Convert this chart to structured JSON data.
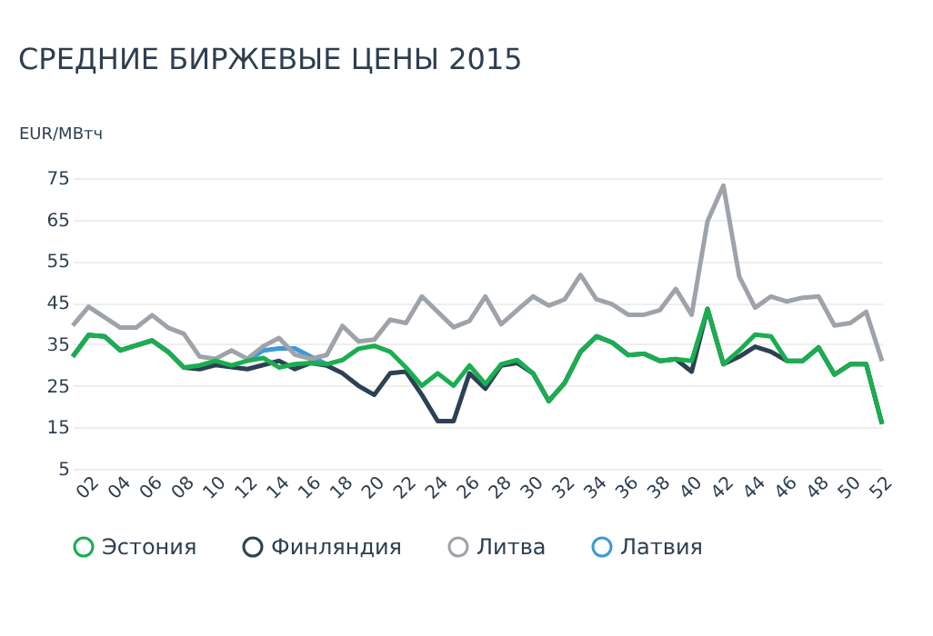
{
  "chart_data": {
    "type": "line",
    "title": "СРЕДНИЕ БИРЖЕВЫЕ ЦЕНЫ 2015",
    "ylabel": "EUR/МВтч",
    "x": [
      1,
      2,
      3,
      4,
      5,
      6,
      7,
      8,
      9,
      10,
      11,
      12,
      13,
      14,
      15,
      16,
      17,
      18,
      19,
      20,
      21,
      22,
      23,
      24,
      25,
      26,
      27,
      28,
      29,
      30,
      31,
      32,
      33,
      34,
      35,
      36,
      37,
      38,
      39,
      40,
      41,
      42,
      43,
      44,
      45,
      46,
      47,
      48,
      49,
      50,
      51,
      52
    ],
    "xlim": [
      1,
      52
    ],
    "xticks": [
      {
        "value": 2,
        "label": "02"
      },
      {
        "value": 4,
        "label": "04"
      },
      {
        "value": 6,
        "label": "06"
      },
      {
        "value": 8,
        "label": "08"
      },
      10,
      12,
      14,
      16,
      18,
      20,
      22,
      24,
      26,
      28,
      30,
      32,
      34,
      36,
      38,
      40,
      42,
      44,
      46,
      48,
      50,
      52
    ],
    "ylim": [
      5,
      75
    ],
    "yticks": [
      5,
      15,
      25,
      35,
      45,
      55,
      65,
      75
    ],
    "grid": "y",
    "legend": "bottom",
    "marker": "none",
    "line_style": "solid",
    "series": [
      {
        "name": "Эстония",
        "color": "#1aae50",
        "values": [
          32,
          37.2,
          36.9,
          33.5,
          34.7,
          35.9,
          33.2,
          29.4,
          29.9,
          31,
          29.9,
          31,
          31.7,
          29.4,
          30.2,
          30.5,
          30.2,
          31.2,
          33.9,
          34.6,
          33.2,
          29.4,
          25,
          28,
          25,
          29.9,
          25.4,
          30.2,
          31.2,
          28,
          21.3,
          25.7,
          33.2,
          36.9,
          35.4,
          32.4,
          32.7,
          31,
          31.4,
          31,
          43.5,
          30.2,
          33.5,
          37.3,
          36.9,
          31,
          31,
          34.2,
          27.7,
          30.2,
          30.2,
          15.8
        ]
      },
      {
        "name": "Финляндия",
        "color": "#2d4154",
        "values": [
          32,
          37.2,
          36.9,
          33.5,
          34.7,
          35.9,
          33.2,
          29.4,
          29,
          30,
          29.5,
          29,
          30,
          31,
          29,
          30.5,
          29.9,
          28,
          25,
          22.8,
          28,
          28.4,
          22.8,
          16.5,
          16.5,
          28,
          24.3,
          29.9,
          30.5,
          28,
          21.3,
          25.7,
          33.2,
          36.9,
          35.4,
          32.4,
          32.7,
          31,
          31.4,
          28.4,
          43.5,
          30.2,
          32,
          34.4,
          33.2,
          31,
          31,
          34.2,
          27.7,
          30.2,
          30.2,
          15.8
        ]
      },
      {
        "name": "Литва",
        "color": "#9ea3aa",
        "values": [
          39.5,
          44,
          41.5,
          39,
          39,
          42,
          39,
          37.5,
          32,
          31.5,
          33.5,
          31.5,
          34.5,
          36.5,
          32.5,
          31.5,
          32.4,
          39.4,
          35.7,
          36.1,
          40.9,
          40.1,
          46.5,
          42.8,
          39.1,
          40.6,
          46.5,
          39.8,
          43.2,
          46.5,
          44.3,
          45.8,
          51.7,
          45.8,
          44.6,
          42.1,
          42.1,
          43.2,
          48.3,
          42.1,
          64.6,
          73.2,
          51.3,
          43.8,
          46.5,
          45.3,
          46.2,
          46.5,
          39.5,
          40.1,
          42.8,
          30.9
        ]
      },
      {
        "name": "Латвия",
        "color": "#3d9ad6",
        "values": [
          null,
          null,
          null,
          null,
          null,
          null,
          null,
          null,
          null,
          null,
          null,
          31,
          33.5,
          34,
          34,
          32,
          30.2,
          null,
          null,
          null,
          null,
          null,
          null,
          null,
          null,
          null,
          null,
          null,
          null,
          null,
          null,
          null,
          null,
          null,
          null,
          null,
          null,
          null,
          null,
          null,
          null,
          null,
          null,
          null,
          null,
          null,
          null,
          null,
          null,
          null,
          null,
          null
        ]
      }
    ]
  }
}
